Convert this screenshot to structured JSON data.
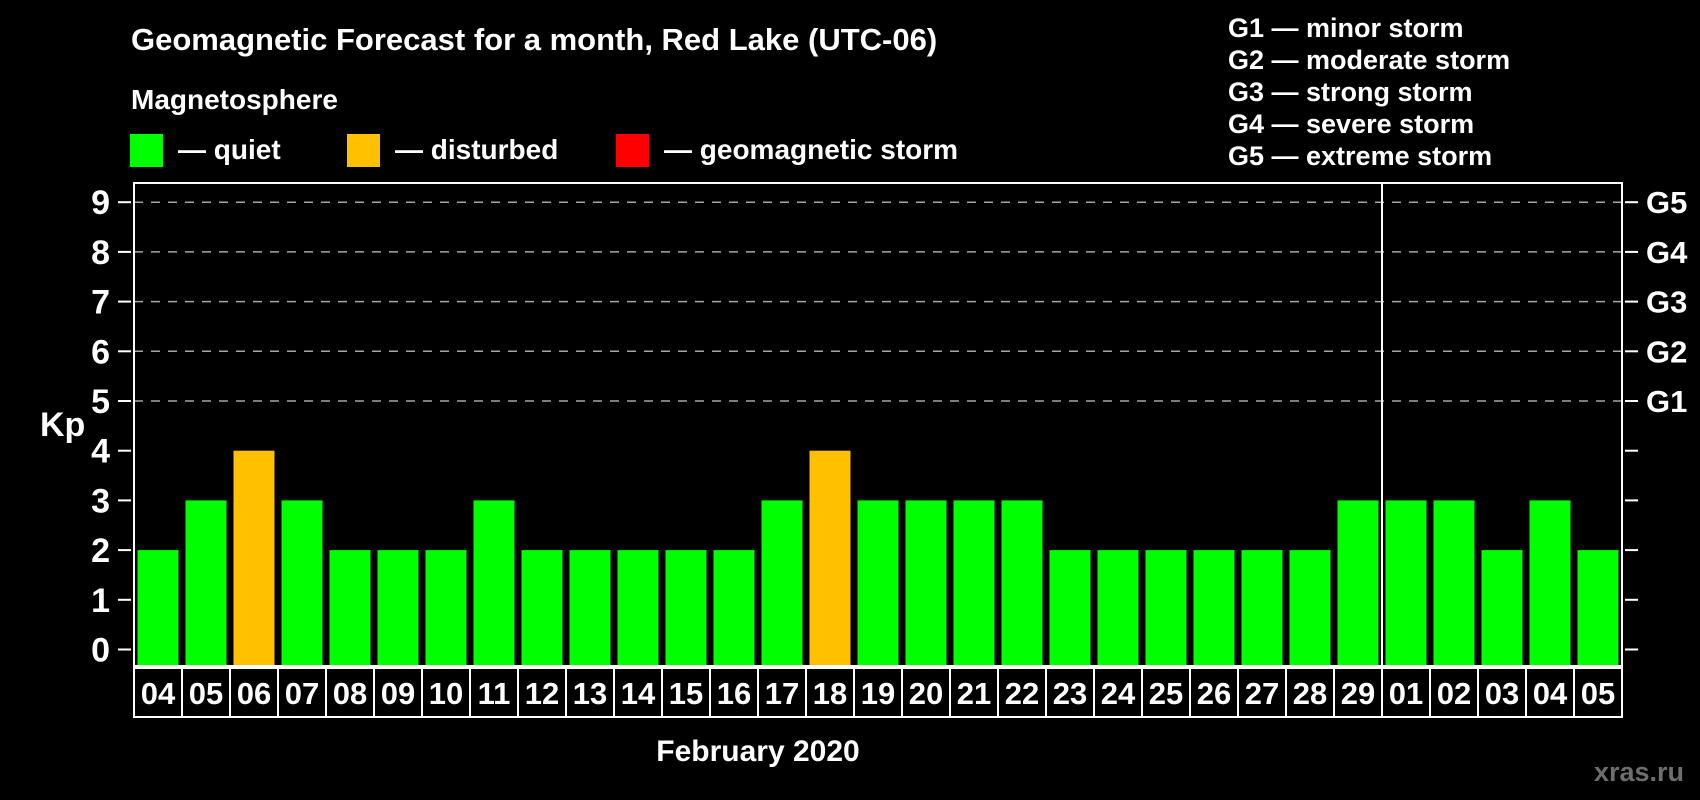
{
  "header": {
    "title": "Geomagnetic Forecast for a month, Red Lake (UTC-06)",
    "subtitle": "Magnetosphere"
  },
  "legend": {
    "items": [
      {
        "key": "quiet",
        "label": "— quiet",
        "color": "#00ff00"
      },
      {
        "key": "disturbed",
        "label": "— disturbed",
        "color": "#ffc000"
      },
      {
        "key": "storm",
        "label": "— geomagnetic storm",
        "color": "#ff0000"
      }
    ]
  },
  "g_scale_legend": {
    "lines": [
      "G1 — minor storm",
      "G2 — moderate storm",
      "G3 — strong storm",
      "G4 — severe storm",
      "G5 — extreme storm"
    ]
  },
  "watermark": "xras.ru",
  "chart_data": {
    "type": "bar",
    "title": "Geomagnetic Forecast for a month, Red Lake (UTC-06)",
    "xlabel": "February 2020",
    "ylabel": "Kp",
    "ylim": [
      0,
      9
    ],
    "y_ticks": [
      0,
      1,
      2,
      3,
      4,
      5,
      6,
      7,
      8,
      9
    ],
    "gridlines_at": [
      5,
      6,
      7,
      8,
      9
    ],
    "grid": "dashed",
    "right_axis_labels": [
      {
        "label": "G1",
        "value": 5
      },
      {
        "label": "G2",
        "value": 6
      },
      {
        "label": "G3",
        "value": 7
      },
      {
        "label": "G4",
        "value": 8
      },
      {
        "label": "G5",
        "value": 9
      }
    ],
    "categories": [
      "04",
      "05",
      "06",
      "07",
      "08",
      "09",
      "10",
      "11",
      "12",
      "13",
      "14",
      "15",
      "16",
      "17",
      "18",
      "19",
      "20",
      "21",
      "22",
      "23",
      "24",
      "25",
      "26",
      "27",
      "28",
      "29",
      "01",
      "02",
      "03",
      "04",
      "05"
    ],
    "values": [
      2,
      3,
      4,
      3,
      2,
      2,
      2,
      3,
      2,
      2,
      2,
      2,
      2,
      3,
      4,
      3,
      3,
      3,
      3,
      2,
      2,
      2,
      2,
      2,
      2,
      3,
      3,
      3,
      2,
      3,
      2
    ],
    "statuses": [
      "quiet",
      "quiet",
      "disturbed",
      "quiet",
      "quiet",
      "quiet",
      "quiet",
      "quiet",
      "quiet",
      "quiet",
      "quiet",
      "quiet",
      "quiet",
      "quiet",
      "disturbed",
      "quiet",
      "quiet",
      "quiet",
      "quiet",
      "quiet",
      "quiet",
      "quiet",
      "quiet",
      "quiet",
      "quiet",
      "quiet",
      "quiet",
      "quiet",
      "quiet",
      "quiet",
      "quiet"
    ],
    "colors": {
      "quiet": "#00ff00",
      "disturbed": "#ffc000",
      "storm": "#ff0000"
    },
    "month_separator_after_index": 25,
    "legend_position": "top-left"
  }
}
